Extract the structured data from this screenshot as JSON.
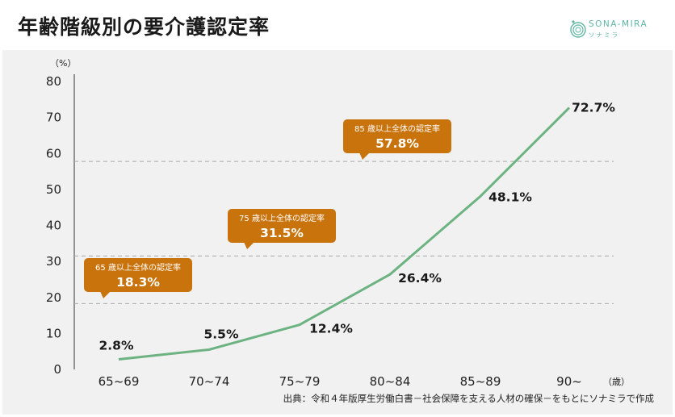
{
  "title": "年齢階級別の要介護認定率",
  "logo": {
    "name": "SONA-MIRA",
    "sub": "ソナミラ",
    "color": "#5fb5a0"
  },
  "source": "出典：令和４年版厚生労働白書－社会保障を支える人材の確保－をもとにソナミラで作成",
  "chart_data": {
    "type": "line",
    "categories": [
      "65~69",
      "70~74",
      "75~79",
      "80~84",
      "85~89",
      "90~"
    ],
    "values": [
      2.8,
      5.5,
      12.4,
      26.4,
      48.1,
      72.7
    ],
    "value_labels": [
      "2.8%",
      "5.5%",
      "12.4%",
      "26.4%",
      "48.1%",
      "72.7%"
    ],
    "yticks": [
      "0",
      "10",
      "20",
      "30",
      "40",
      "50",
      "60",
      "70",
      "80"
    ],
    "ylim": [
      0,
      80
    ],
    "ylabel": "（%）",
    "xlabel": "（歳）",
    "line_color": "#6db382",
    "reference_lines": [
      {
        "value": 18.3,
        "label": "65 歳以上全体の認定率",
        "value_label": "18.3%",
        "color": "#c8730c"
      },
      {
        "value": 31.5,
        "label": "75 歳以上全体の認定率",
        "value_label": "31.5%",
        "color": "#c8730c"
      },
      {
        "value": 57.8,
        "label": "85 歳以上全体の認定率",
        "value_label": "57.8%",
        "color": "#c8730c"
      }
    ]
  }
}
